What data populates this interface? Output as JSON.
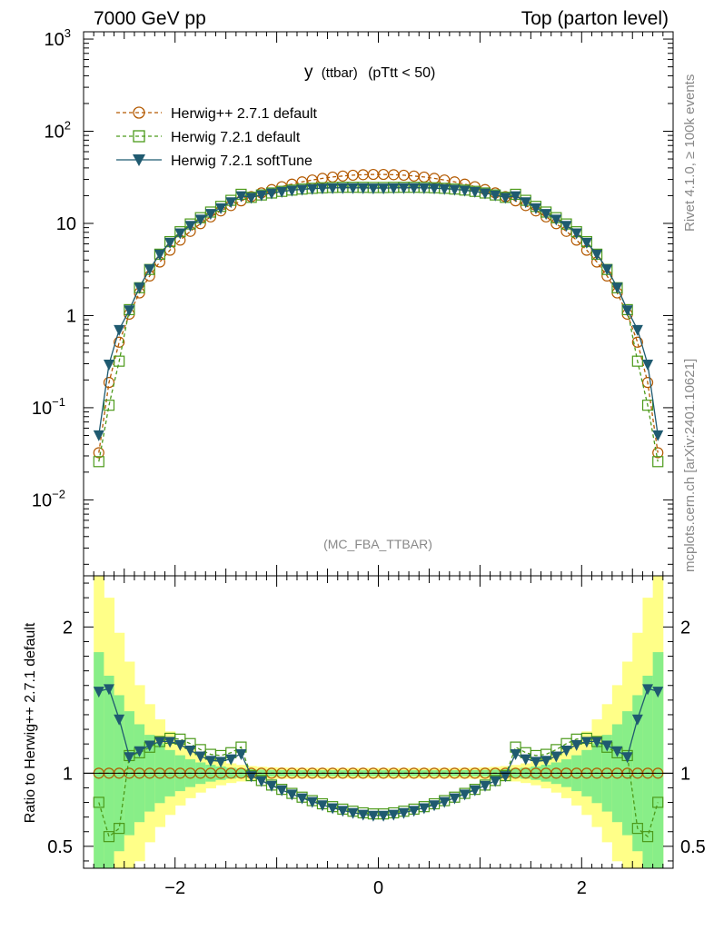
{
  "header": {
    "left": "7000 GeV pp",
    "right": "Top (parton level)"
  },
  "side_text": {
    "rivet": "Rivet 4.1.0, ≥ 100k events",
    "mcplots": "mcplots.cern.ch [arXiv:2401.10621]"
  },
  "chart_data": [
    {
      "type": "line",
      "title": "y (ttbar) (pTtt < 50)",
      "title_main": "y",
      "title_sub": "(ttbar)",
      "title_cut": "(pTtt < 50)",
      "analysis_tag": "(MC_FBA_TTBAR)",
      "yscale": "log",
      "ylim": [
        0.0015,
        1200
      ],
      "xlim": [
        -2.9,
        2.9
      ],
      "y_ticks": [
        {
          "value": 0.01,
          "base": "10",
          "exp": "−2"
        },
        {
          "value": 0.1,
          "base": "10",
          "exp": "−1"
        },
        {
          "value": 1,
          "label": "1"
        },
        {
          "value": 10,
          "label": "10"
        },
        {
          "value": 100,
          "base": "10",
          "exp": "2"
        },
        {
          "value": 1000,
          "base": "10",
          "exp": "3"
        }
      ],
      "legend_position": "top-left",
      "series": [
        {
          "name": "Herwig++ 2.7.1 default",
          "color": "#b35900",
          "marker": "circle",
          "style": "dashed"
        },
        {
          "name": "Herwig 7.2.1 default",
          "color": "#4c9a1a",
          "marker": "square",
          "style": "dashed"
        },
        {
          "name": "Herwig 7.2.1 softTune",
          "color": "#1f5a70",
          "marker": "triangle-down",
          "style": "solid"
        }
      ]
    },
    {
      "type": "line",
      "ylabel": "Ratio to Herwig++ 2.7.1 default",
      "ylim": [
        0.35,
        2.35
      ],
      "xlim": [
        -2.9,
        2.9
      ],
      "y_ticks": [
        0.5,
        1,
        2
      ],
      "x_ticks": [
        {
          "value": -2,
          "label": "−2"
        },
        {
          "value": 0,
          "label": "0"
        },
        {
          "value": 2,
          "label": "2"
        }
      ],
      "band_colors": {
        "inner": "#88ee88",
        "outer": "#ffff88"
      }
    }
  ]
}
